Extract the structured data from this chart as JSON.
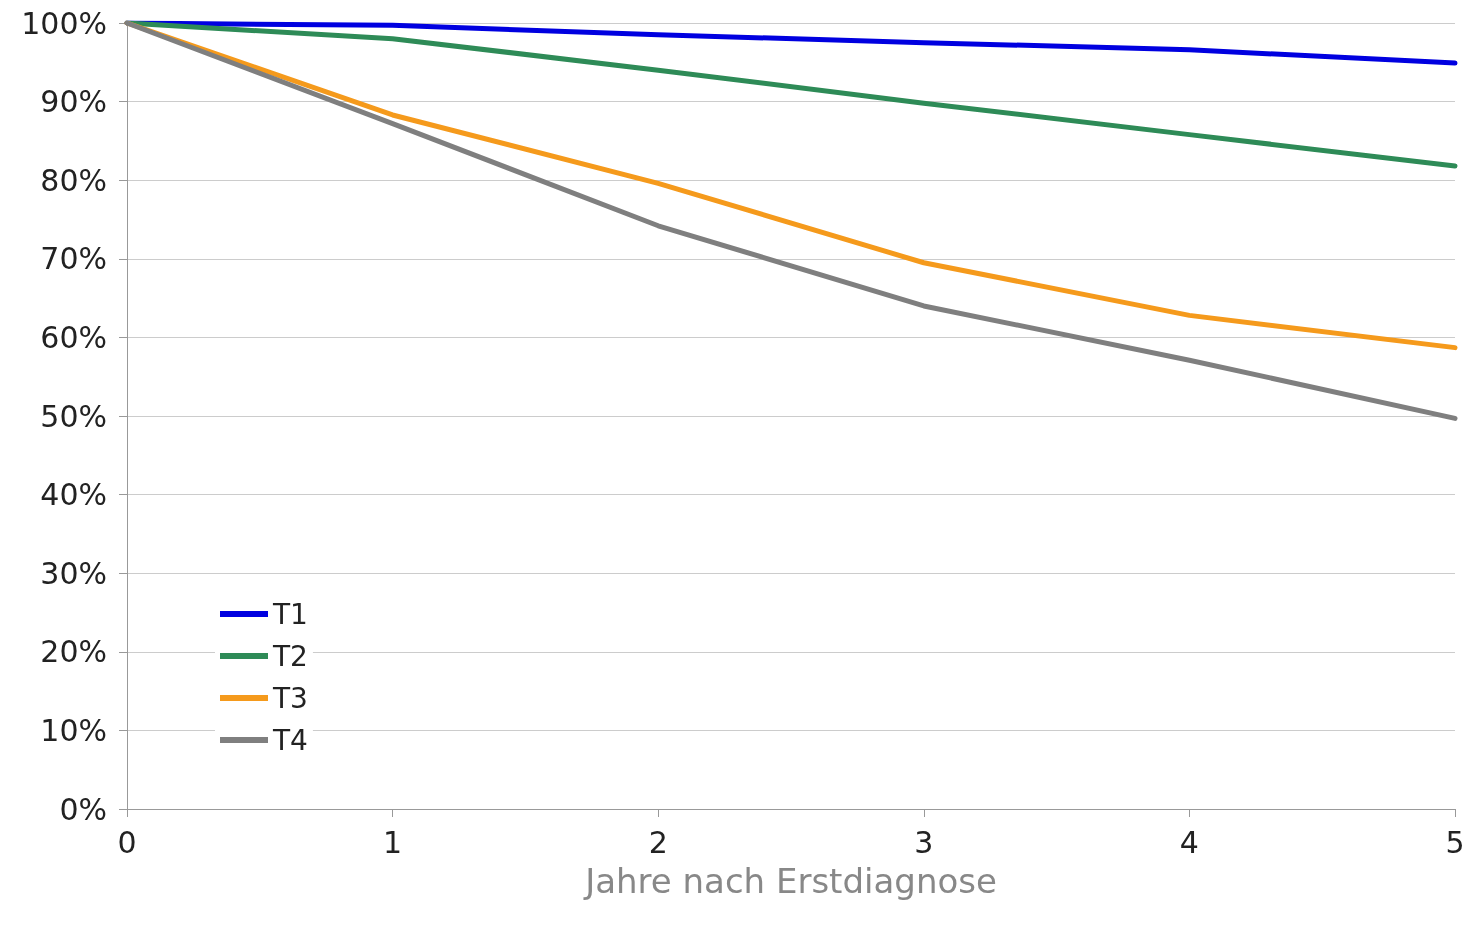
{
  "chart_data": {
    "type": "line",
    "xlabel": "Jahre nach Erstdiagnose",
    "x": [
      0,
      1,
      2,
      3,
      4,
      5
    ],
    "series": [
      {
        "name": "T1",
        "color": "#0000e0",
        "values": [
          100,
          99.7,
          98.5,
          97.5,
          96.6,
          94.9
        ]
      },
      {
        "name": "T2",
        "color": "#2e8b57",
        "values": [
          100,
          98,
          94,
          89.8,
          85.8,
          81.8
        ]
      },
      {
        "name": "T3",
        "color": "#f59a1c",
        "values": [
          100,
          88.3,
          79.6,
          69.5,
          62.8,
          58.7
        ]
      },
      {
        "name": "T4",
        "color": "#7f7f7f",
        "values": [
          100,
          87.2,
          74.2,
          64,
          57.1,
          49.7
        ]
      }
    ],
    "xlim": [
      0,
      5
    ],
    "xticks": [
      0,
      1,
      2,
      3,
      4,
      5
    ],
    "ylim": [
      0,
      100
    ],
    "yticks": [
      {
        "value": 0,
        "label": "0%"
      },
      {
        "value": 10,
        "label": "10%"
      },
      {
        "value": 20,
        "label": "20%"
      },
      {
        "value": 30,
        "label": "30%"
      },
      {
        "value": 40,
        "label": "40%"
      },
      {
        "value": 50,
        "label": "50%"
      },
      {
        "value": 60,
        "label": "60%"
      },
      {
        "value": 70,
        "label": "70%"
      },
      {
        "value": 80,
        "label": "80%"
      },
      {
        "value": 90,
        "label": "90%"
      },
      {
        "value": 100,
        "label": "100%"
      }
    ],
    "grid": "y",
    "legend": "bottom left",
    "marker": "none",
    "line_style": "solid"
  }
}
